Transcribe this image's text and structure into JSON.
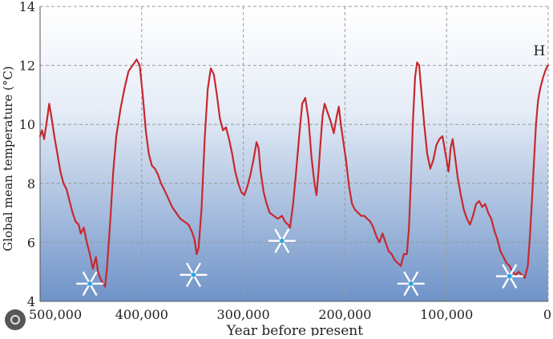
{
  "chart_data": {
    "type": "line",
    "title": "",
    "xlabel": "Year before present",
    "ylabel": "Global mean temperature (°C)",
    "xlim": [
      500000,
      0
    ],
    "ylim": [
      4,
      14
    ],
    "x_ticks": [
      500000,
      400000,
      300000,
      200000,
      100000,
      0
    ],
    "x_tick_labels": [
      "500,000",
      "400,000",
      "300,000",
      "200,000",
      "100,000",
      "0"
    ],
    "y_ticks": [
      4,
      6,
      8,
      10,
      12,
      14
    ],
    "y_tick_labels": [
      "4",
      "6",
      "8",
      "10",
      "12",
      "14"
    ],
    "grid": true,
    "series": [
      {
        "color": "#c8282e",
        "points": [
          [
            500000,
            9.6
          ],
          [
            498000,
            9.8
          ],
          [
            496000,
            9.5
          ],
          [
            493000,
            10.2
          ],
          [
            491000,
            10.7
          ],
          [
            489000,
            10.3
          ],
          [
            486000,
            9.6
          ],
          [
            483000,
            9.0
          ],
          [
            480000,
            8.4
          ],
          [
            477000,
            8.0
          ],
          [
            474000,
            7.8
          ],
          [
            471000,
            7.4
          ],
          [
            468000,
            7.0
          ],
          [
            465000,
            6.7
          ],
          [
            462000,
            6.6
          ],
          [
            460000,
            6.3
          ],
          [
            457000,
            6.5
          ],
          [
            454000,
            6.0
          ],
          [
            451000,
            5.6
          ],
          [
            448000,
            5.1
          ],
          [
            445000,
            5.5
          ],
          [
            443000,
            5.0
          ],
          [
            441000,
            4.8
          ],
          [
            438000,
            4.6
          ],
          [
            436000,
            4.5
          ],
          [
            434000,
            5.2
          ],
          [
            431000,
            6.7
          ],
          [
            428000,
            8.4
          ],
          [
            425000,
            9.6
          ],
          [
            421000,
            10.5
          ],
          [
            417000,
            11.2
          ],
          [
            413000,
            11.8
          ],
          [
            409000,
            12.0
          ],
          [
            405000,
            12.2
          ],
          [
            402000,
            12.0
          ],
          [
            399000,
            11.0
          ],
          [
            396000,
            9.8
          ],
          [
            393000,
            9.0
          ],
          [
            390000,
            8.6
          ],
          [
            387000,
            8.5
          ],
          [
            384000,
            8.3
          ],
          [
            381000,
            8.0
          ],
          [
            378000,
            7.8
          ],
          [
            374000,
            7.5
          ],
          [
            370000,
            7.2
          ],
          [
            366000,
            7.0
          ],
          [
            362000,
            6.8
          ],
          [
            358000,
            6.7
          ],
          [
            354000,
            6.6
          ],
          [
            351000,
            6.4
          ],
          [
            348000,
            6.1
          ],
          [
            346000,
            5.6
          ],
          [
            344000,
            5.8
          ],
          [
            341000,
            7.2
          ],
          [
            338000,
            9.5
          ],
          [
            335000,
            11.2
          ],
          [
            332000,
            11.9
          ],
          [
            329000,
            11.7
          ],
          [
            326000,
            11.0
          ],
          [
            323000,
            10.2
          ],
          [
            320000,
            9.8
          ],
          [
            317000,
            9.9
          ],
          [
            314000,
            9.5
          ],
          [
            311000,
            9.0
          ],
          [
            308000,
            8.4
          ],
          [
            305000,
            8.0
          ],
          [
            302000,
            7.7
          ],
          [
            299000,
            7.6
          ],
          [
            296000,
            7.9
          ],
          [
            293000,
            8.3
          ],
          [
            290000,
            8.8
          ],
          [
            287000,
            9.4
          ],
          [
            285000,
            9.2
          ],
          [
            283000,
            8.4
          ],
          [
            280000,
            7.7
          ],
          [
            277000,
            7.3
          ],
          [
            274000,
            7.0
          ],
          [
            270000,
            6.9
          ],
          [
            266000,
            6.8
          ],
          [
            262000,
            6.9
          ],
          [
            259000,
            6.7
          ],
          [
            256000,
            6.6
          ],
          [
            254000,
            6.5
          ],
          [
            251000,
            7.3
          ],
          [
            248000,
            8.4
          ],
          [
            245000,
            9.6
          ],
          [
            242000,
            10.7
          ],
          [
            239000,
            10.9
          ],
          [
            236000,
            10.2
          ],
          [
            233000,
            8.9
          ],
          [
            230000,
            8.0
          ],
          [
            228000,
            7.6
          ],
          [
            226000,
            8.4
          ],
          [
            224000,
            9.4
          ],
          [
            222000,
            10.3
          ],
          [
            220000,
            10.7
          ],
          [
            217000,
            10.4
          ],
          [
            214000,
            10.1
          ],
          [
            211000,
            9.7
          ],
          [
            208000,
            10.3
          ],
          [
            206000,
            10.6
          ],
          [
            204000,
            10.0
          ],
          [
            202000,
            9.5
          ],
          [
            199000,
            8.8
          ],
          [
            196000,
            7.9
          ],
          [
            193000,
            7.3
          ],
          [
            190000,
            7.1
          ],
          [
            187000,
            7.0
          ],
          [
            184000,
            6.9
          ],
          [
            181000,
            6.9
          ],
          [
            178000,
            6.8
          ],
          [
            175000,
            6.7
          ],
          [
            172000,
            6.5
          ],
          [
            169000,
            6.2
          ],
          [
            166000,
            6.0
          ],
          [
            163000,
            6.3
          ],
          [
            160000,
            6.0
          ],
          [
            157000,
            5.7
          ],
          [
            154000,
            5.6
          ],
          [
            151000,
            5.4
          ],
          [
            148000,
            5.3
          ],
          [
            145000,
            5.2
          ],
          [
            142000,
            5.6
          ],
          [
            139000,
            5.6
          ],
          [
            137000,
            6.5
          ],
          [
            135000,
            8.2
          ],
          [
            133000,
            10.2
          ],
          [
            131000,
            11.6
          ],
          [
            129000,
            12.1
          ],
          [
            127000,
            12.0
          ],
          [
            125000,
            11.2
          ],
          [
            122000,
            10.0
          ],
          [
            119000,
            9.0
          ],
          [
            116000,
            8.5
          ],
          [
            113000,
            8.8
          ],
          [
            110000,
            9.3
          ],
          [
            107000,
            9.5
          ],
          [
            104000,
            9.6
          ],
          [
            101000,
            9.0
          ],
          [
            98000,
            8.4
          ],
          [
            96000,
            9.2
          ],
          [
            94000,
            9.5
          ],
          [
            92000,
            9.0
          ],
          [
            89000,
            8.2
          ],
          [
            86000,
            7.6
          ],
          [
            83000,
            7.1
          ],
          [
            80000,
            6.8
          ],
          [
            77000,
            6.6
          ],
          [
            74000,
            6.9
          ],
          [
            71000,
            7.3
          ],
          [
            68000,
            7.4
          ],
          [
            65000,
            7.2
          ],
          [
            62000,
            7.3
          ],
          [
            59000,
            7.0
          ],
          [
            56000,
            6.8
          ],
          [
            53000,
            6.4
          ],
          [
            50000,
            6.1
          ],
          [
            47000,
            5.7
          ],
          [
            44000,
            5.5
          ],
          [
            41000,
            5.3
          ],
          [
            38000,
            5.2
          ],
          [
            35000,
            5.0
          ],
          [
            32000,
            4.9
          ],
          [
            29000,
            5.0
          ],
          [
            26000,
            4.9
          ],
          [
            23000,
            4.8
          ],
          [
            20000,
            5.2
          ],
          [
            18000,
            6.2
          ],
          [
            16000,
            7.4
          ],
          [
            14000,
            8.7
          ],
          [
            12000,
            10.0
          ],
          [
            10000,
            10.8
          ],
          [
            8000,
            11.2
          ],
          [
            5000,
            11.6
          ],
          [
            2000,
            11.9
          ],
          [
            0,
            12.0
          ]
        ]
      }
    ],
    "annotations": [
      {
        "text": "H",
        "x": 4000,
        "y": 12.5
      }
    ],
    "snowflake_markers": [
      {
        "icon": "snowflake-icon",
        "x": 451000,
        "y": 4.6
      },
      {
        "icon": "snowflake-icon",
        "x": 349000,
        "y": 4.9
      },
      {
        "icon": "snowflake-icon",
        "x": 262000,
        "y": 6.05
      },
      {
        "icon": "snowflake-icon",
        "x": 135000,
        "y": 4.6
      },
      {
        "icon": "snowflake-icon",
        "x": 38000,
        "y": 4.85
      }
    ],
    "colors": {
      "line": "#c8282e",
      "grid": "#9a9a9a",
      "background_top": "#ffffff",
      "background_bottom": "#6f93c8",
      "snowflake": "#ffffff",
      "snowflake_center": "#29a6e0"
    }
  }
}
